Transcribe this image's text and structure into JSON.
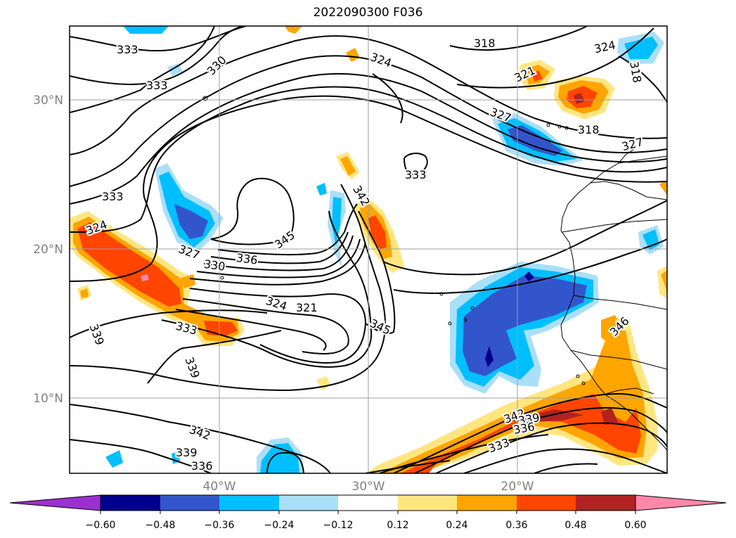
{
  "title": "2022090300 F036",
  "lat_labels": [
    "30°N",
    "20°N",
    "10°N"
  ],
  "lon_labels": [
    "40°W",
    "30°W",
    "20°W"
  ],
  "contour_labels": [
    "333",
    "330",
    "333",
    "318",
    "324",
    "324",
    "321",
    "318",
    "327",
    "318",
    "327",
    "333",
    "333",
    "324",
    "342",
    "345",
    "327",
    "330",
    "336",
    "324",
    "321",
    "333",
    "345",
    "339",
    "339",
    "346",
    "342",
    "339",
    "336",
    "333",
    "342",
    "339",
    "336"
  ],
  "colorbar": {
    "ticks": [
      "−0.60",
      "−0.48",
      "−0.36",
      "−0.24",
      "−0.12",
      "0.12",
      "0.24",
      "0.36",
      "0.48",
      "0.60"
    ],
    "colors": [
      "#9b30d0",
      "#00008b",
      "#3355cc",
      "#00bfff",
      "#aadff8",
      "#ffffff",
      "#ffe680",
      "#ffa500",
      "#ff4500",
      "#b22222",
      "#ff88aa"
    ]
  }
}
